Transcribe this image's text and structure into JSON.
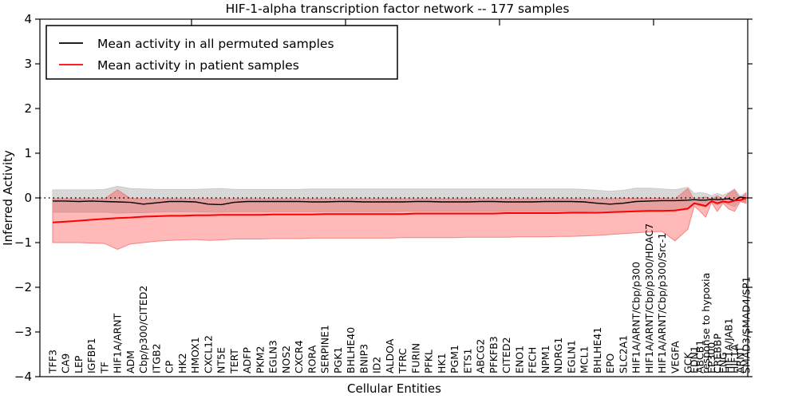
{
  "title": "HIF-1-alpha transcription factor network -- 177 samples",
  "axes": {
    "xlabel": "Cellular Entities",
    "ylabel": "Inferred Activity",
    "ytick_labels": [
      "4",
      "3",
      "2",
      "1",
      "0",
      "−1",
      "−2",
      "−3",
      "−4"
    ],
    "ytick_values": [
      4,
      3,
      2,
      1,
      0,
      -1,
      -2,
      -3,
      -4
    ],
    "ylim": [
      -4,
      4
    ]
  },
  "legend": [
    {
      "label": "Mean activity in all permuted samples",
      "color": "#000000"
    },
    {
      "label": "Mean activity in patient samples",
      "color": "#ff0000"
    }
  ],
  "chart_data": {
    "type": "line",
    "title": "HIF-1-alpha transcription factor network -- 177 samples",
    "xlabel": "Cellular Entities",
    "ylabel": "Inferred Activity",
    "ylim": [
      -4,
      4
    ],
    "zero_line": true,
    "legend_position": "upper left",
    "x_labels": [
      "TFF3",
      "CA9",
      "LEP",
      "IGFBP1",
      "TF",
      "HIF1A/ARNT",
      "ADM",
      "Cbp/p300/CITED2",
      "ITGB2",
      "CP",
      "HK2",
      "HMOX1",
      "CXCL12",
      "NT5E",
      "TERT",
      "ADFP",
      "PKM2",
      "EGLN3",
      "NOS2",
      "CXCR4",
      "RORA",
      "SERPINE1",
      "PGK1",
      "BHLHE40",
      "BNIP3",
      "ID2",
      "ALDOA",
      "TFRC",
      "FURIN",
      "PFKL",
      "HK1",
      "PGM1",
      "ETS1",
      "ABCG2",
      "PFKFB3",
      "CITED2",
      "ENO1",
      "FECH",
      "NPM1",
      "NDRG1",
      "EGLN1",
      "MCL1",
      "BHLHE41",
      "EPO",
      "SLC2A1",
      "HIF1A/ARNT/Cbp/p300",
      "HIF1A/ARNT/Cbp/p300/HDAC7",
      "HIF1A/ARNT/Cbp/p300/Src-1",
      "VEGFA",
      "GCK",
      "EDN1",
      "ABCB1",
      "response to hypoxia",
      "EP300",
      "CREBBP",
      "ENG",
      "HIF1A/JAB1",
      "HIF1A",
      "ARNT",
      "SMAD3/SMAD4/SP1"
    ],
    "series": [
      {
        "name": "Mean activity in all permuted samples",
        "color": "#000000",
        "values": [
          -0.07,
          -0.07,
          -0.08,
          -0.07,
          -0.08,
          -0.09,
          -0.1,
          -0.14,
          -0.11,
          -0.08,
          -0.08,
          -0.09,
          -0.14,
          -0.15,
          -0.1,
          -0.08,
          -0.08,
          -0.08,
          -0.08,
          -0.08,
          -0.09,
          -0.09,
          -0.08,
          -0.08,
          -0.09,
          -0.09,
          -0.09,
          -0.09,
          -0.08,
          -0.08,
          -0.09,
          -0.09,
          -0.09,
          -0.08,
          -0.08,
          -0.09,
          -0.09,
          -0.09,
          -0.08,
          -0.08,
          -0.08,
          -0.09,
          -0.12,
          -0.14,
          -0.12,
          -0.08,
          -0.07,
          -0.06,
          -0.06,
          -0.05,
          -0.04,
          -0.05,
          -0.05,
          -0.03,
          -0.04,
          -0.03,
          -0.02,
          -0.06,
          0.02,
          0.0
        ]
      },
      {
        "name": "Mean activity in patient samples",
        "color": "#ff0000",
        "values": [
          -0.55,
          -0.53,
          -0.51,
          -0.49,
          -0.47,
          -0.45,
          -0.44,
          -0.42,
          -0.41,
          -0.4,
          -0.4,
          -0.39,
          -0.39,
          -0.38,
          -0.38,
          -0.38,
          -0.38,
          -0.37,
          -0.37,
          -0.37,
          -0.37,
          -0.36,
          -0.36,
          -0.36,
          -0.36,
          -0.36,
          -0.36,
          -0.36,
          -0.35,
          -0.35,
          -0.35,
          -0.35,
          -0.35,
          -0.35,
          -0.35,
          -0.34,
          -0.34,
          -0.34,
          -0.34,
          -0.34,
          -0.33,
          -0.33,
          -0.33,
          -0.32,
          -0.31,
          -0.3,
          -0.29,
          -0.29,
          -0.28,
          -0.24,
          -0.12,
          -0.15,
          -0.18,
          -0.07,
          -0.12,
          -0.08,
          -0.1,
          -0.06,
          -0.05,
          -0.01
        ]
      }
    ],
    "bands": [
      {
        "name": "permuted samples range",
        "color": "#989898",
        "top": [
          0.18,
          0.18,
          0.18,
          0.18,
          0.19,
          0.26,
          0.21,
          0.2,
          0.19,
          0.19,
          0.19,
          0.19,
          0.2,
          0.21,
          0.19,
          0.19,
          0.19,
          0.19,
          0.19,
          0.19,
          0.2,
          0.2,
          0.2,
          0.2,
          0.2,
          0.2,
          0.2,
          0.2,
          0.2,
          0.2,
          0.2,
          0.2,
          0.2,
          0.2,
          0.2,
          0.2,
          0.2,
          0.2,
          0.2,
          0.2,
          0.2,
          0.19,
          0.17,
          0.15,
          0.17,
          0.22,
          0.22,
          0.2,
          0.18,
          0.24,
          0.1,
          0.12,
          0.1,
          0.05,
          0.1,
          0.06,
          0.12,
          0.2,
          0.04,
          0.12
        ],
        "bottom": [
          -0.32,
          -0.32,
          -0.32,
          -0.32,
          -0.32,
          -0.34,
          -0.33,
          -0.33,
          -0.32,
          -0.31,
          -0.31,
          -0.31,
          -0.32,
          -0.32,
          -0.31,
          -0.31,
          -0.31,
          -0.31,
          -0.31,
          -0.31,
          -0.31,
          -0.31,
          -0.31,
          -0.31,
          -0.31,
          -0.31,
          -0.31,
          -0.3,
          -0.3,
          -0.3,
          -0.3,
          -0.3,
          -0.3,
          -0.3,
          -0.3,
          -0.3,
          -0.3,
          -0.3,
          -0.3,
          -0.3,
          -0.3,
          -0.3,
          -0.29,
          -0.28,
          -0.29,
          -0.31,
          -0.3,
          -0.29,
          -0.28,
          -0.26,
          -0.14,
          -0.18,
          -0.2,
          -0.1,
          -0.16,
          -0.1,
          -0.15,
          -0.2,
          -0.06,
          -0.12
        ]
      },
      {
        "name": "patient samples range",
        "color": "#ff0000",
        "top": [
          -0.02,
          -0.02,
          -0.02,
          -0.02,
          -0.02,
          0.18,
          -0.01,
          -0.02,
          -0.02,
          -0.02,
          -0.02,
          -0.02,
          -0.02,
          -0.02,
          -0.02,
          -0.02,
          -0.02,
          -0.02,
          -0.02,
          -0.02,
          -0.02,
          -0.02,
          -0.02,
          -0.02,
          -0.02,
          -0.02,
          -0.02,
          -0.02,
          -0.02,
          -0.02,
          -0.02,
          -0.02,
          -0.02,
          -0.02,
          -0.02,
          -0.02,
          -0.02,
          -0.02,
          -0.02,
          -0.02,
          -0.02,
          -0.02,
          -0.02,
          -0.02,
          -0.01,
          -0.01,
          -0.01,
          -0.01,
          -0.02,
          0.21,
          -0.04,
          0.0,
          0.02,
          -0.03,
          0.05,
          -0.04,
          0.1,
          0.18,
          -0.02,
          0.1
        ],
        "bottom": [
          -1.0,
          -1.0,
          -1.0,
          -1.01,
          -1.02,
          -1.15,
          -1.03,
          -1.0,
          -0.97,
          -0.95,
          -0.94,
          -0.93,
          -0.95,
          -0.94,
          -0.92,
          -0.92,
          -0.92,
          -0.91,
          -0.91,
          -0.91,
          -0.9,
          -0.9,
          -0.9,
          -0.9,
          -0.9,
          -0.9,
          -0.9,
          -0.89,
          -0.89,
          -0.89,
          -0.89,
          -0.89,
          -0.88,
          -0.88,
          -0.88,
          -0.88,
          -0.87,
          -0.87,
          -0.87,
          -0.86,
          -0.86,
          -0.85,
          -0.84,
          -0.82,
          -0.8,
          -0.78,
          -0.76,
          -0.75,
          -0.96,
          -0.7,
          -0.18,
          -0.3,
          -0.43,
          -0.1,
          -0.3,
          -0.12,
          -0.25,
          -0.3,
          -0.08,
          -0.12
        ]
      }
    ]
  }
}
